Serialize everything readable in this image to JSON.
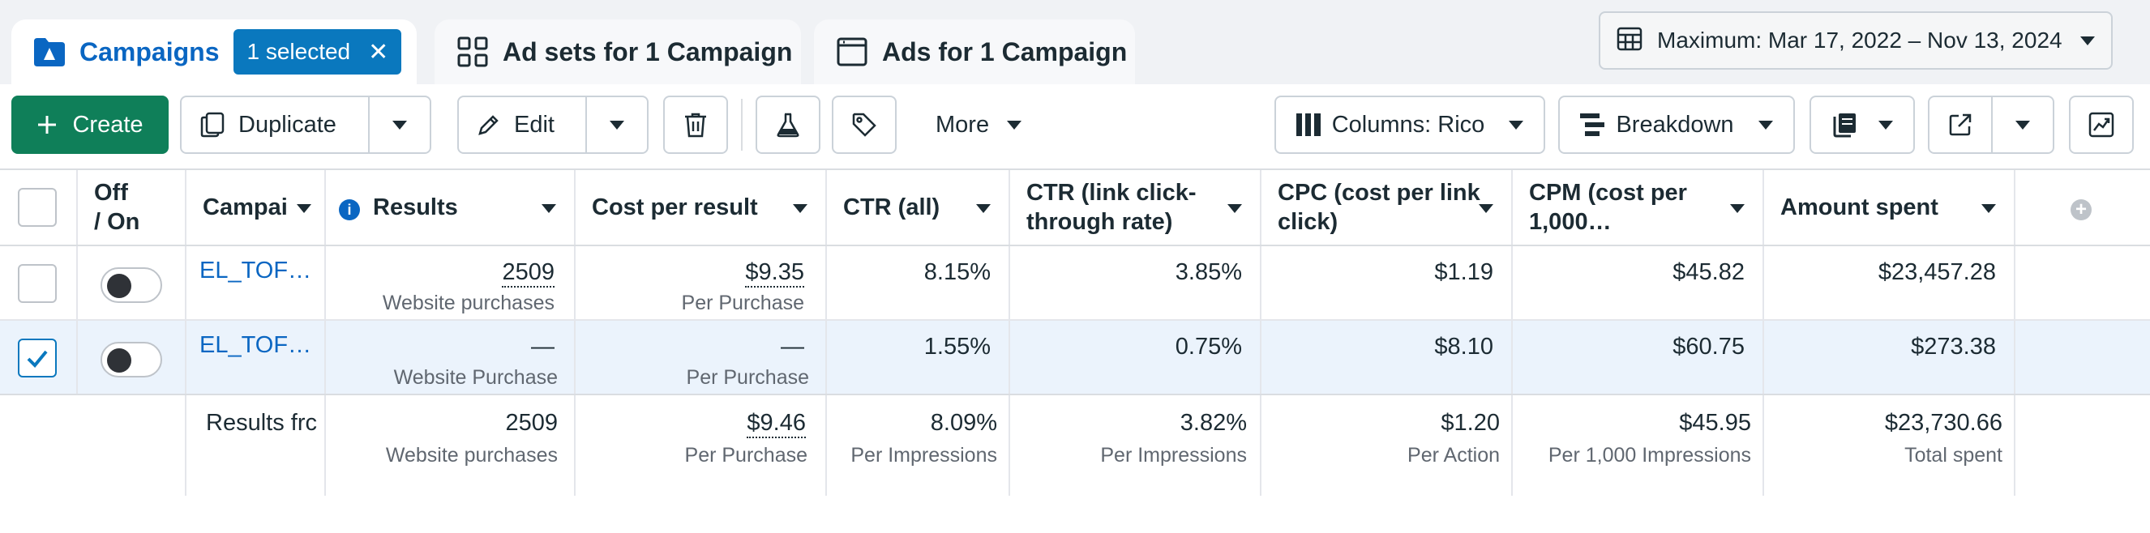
{
  "tabs": {
    "campaigns": "Campaigns",
    "selected_badge": "1 selected",
    "adsets": "Ad sets for 1 Campaign",
    "ads": "Ads for 1 Campaign"
  },
  "date_range": "Maximum: Mar 17, 2022 – Nov 13, 2024",
  "toolbar": {
    "create": "Create",
    "duplicate": "Duplicate",
    "edit": "Edit",
    "more": "More",
    "columns": "Columns: Rico",
    "breakdown": "Breakdown"
  },
  "columns": {
    "off_on_1": "Off",
    "off_on_2": "/ On",
    "campaign": "Campai",
    "results": "Results",
    "cost_per_result": "Cost per result",
    "ctr_all": "CTR (all)",
    "ctr_link_1": "CTR (link click-",
    "ctr_link_2": "through rate)",
    "cpc_1": "CPC (cost per link",
    "cpc_2": "click)",
    "cpm_1": "CPM (cost per",
    "cpm_2": "1,000…",
    "amount_spent": "Amount spent"
  },
  "rows": [
    {
      "checked": false,
      "campaign": "EL_TOF…",
      "results": "2509",
      "results_sub": "Website purchases",
      "cost_per_result": "$9.35",
      "cost_per_result_sub": "Per Purchase",
      "ctr_all": "8.15%",
      "ctr_link": "3.85%",
      "cpc": "$1.19",
      "cpm": "$45.82",
      "amount_spent": "$23,457.28"
    },
    {
      "checked": true,
      "campaign": "EL_TOF…",
      "results": "—",
      "results_sub": "Website Purchase",
      "cost_per_result": "—",
      "cost_per_result_sub": "Per Purchase",
      "ctr_all": "1.55%",
      "ctr_link": "0.75%",
      "cpc": "$8.10",
      "cpm": "$60.75",
      "amount_spent": "$273.38"
    }
  ],
  "totals": {
    "label": "Results frc",
    "results": "2509",
    "results_sub": "Website purchases",
    "cost_per_result": "$9.46",
    "cost_per_result_sub": "Per Purchase",
    "ctr_all": "8.09%",
    "ctr_all_sub": "Per Impressions",
    "ctr_link": "3.82%",
    "ctr_link_sub": "Per Impressions",
    "cpc": "$1.20",
    "cpc_sub": "Per Action",
    "cpm": "$45.95",
    "cpm_sub": "Per 1,000 Impressions",
    "amount_spent": "$23,730.66",
    "amount_spent_sub": "Total spent"
  },
  "colors": {
    "accent_blue": "#0a66c2",
    "create_green": "#0f7f59",
    "selected_row": "#ebf3fc"
  }
}
